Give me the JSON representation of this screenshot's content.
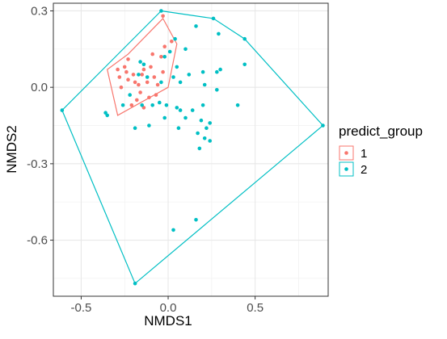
{
  "chart_data": {
    "type": "scatter",
    "title": "",
    "xlabel": "NMDS1",
    "ylabel": "NMDS2",
    "xlim": [
      -0.66,
      0.92
    ],
    "ylim": [
      -0.82,
      0.33
    ],
    "x_ticks": [
      -0.5,
      0.0,
      0.5
    ],
    "x_tick_labels": [
      "-0.5",
      "0.0",
      "0.5"
    ],
    "y_ticks": [
      0.3,
      0.0,
      -0.3,
      -0.6
    ],
    "y_tick_labels": [
      "0.3",
      "0.0",
      "-0.3",
      "-0.6"
    ],
    "grid": true,
    "legend": {
      "title": "predict_group",
      "position": "right",
      "entries": [
        "1",
        "2"
      ]
    },
    "series": [
      {
        "name": "1",
        "color": "#F8766D",
        "points": [
          [
            -0.29,
            0.07
          ],
          [
            -0.25,
            0.08
          ],
          [
            -0.24,
            0.06
          ],
          [
            -0.28,
            0.04
          ],
          [
            -0.23,
            0.03
          ],
          [
            -0.2,
            0.05
          ],
          [
            -0.19,
            0.02
          ],
          [
            -0.17,
            0.01
          ],
          [
            -0.15,
            0.05
          ],
          [
            -0.14,
            0.07
          ],
          [
            -0.12,
            0.02
          ],
          [
            -0.16,
            -0.02
          ],
          [
            -0.18,
            -0.05
          ],
          [
            -0.14,
            -0.08
          ],
          [
            -0.11,
            -0.04
          ],
          [
            -0.1,
            0.08
          ],
          [
            -0.08,
            0.04
          ],
          [
            -0.06,
            0.01
          ],
          [
            -0.07,
            -0.03
          ],
          [
            -0.04,
            0.12
          ],
          [
            -0.02,
            0.16
          ],
          [
            0.02,
            0.18
          ],
          [
            -0.03,
            0.06
          ],
          [
            -0.27,
            0.0
          ],
          [
            -0.21,
            -0.07
          ],
          [
            -0.09,
            0.13
          ],
          [
            -0.03,
            0.28
          ],
          [
            -0.23,
            0.11
          ]
        ],
        "hull": [
          [
            -0.03,
            0.27
          ],
          [
            0.05,
            0.17
          ],
          [
            0.0,
            0.0
          ],
          [
            -0.29,
            -0.11
          ],
          [
            -0.35,
            0.07
          ],
          [
            -0.23,
            0.13
          ]
        ]
      },
      {
        "name": "2",
        "color": "#00BFC4",
        "points": [
          [
            -0.04,
            0.3
          ],
          [
            0.26,
            0.27
          ],
          [
            0.16,
            0.24
          ],
          [
            0.29,
            0.21
          ],
          [
            0.44,
            0.19
          ],
          [
            0.04,
            0.19
          ],
          [
            0.1,
            0.15
          ],
          [
            -0.02,
            0.12
          ],
          [
            0.01,
            0.14
          ],
          [
            0.05,
            0.08
          ],
          [
            0.12,
            0.05
          ],
          [
            0.2,
            0.06
          ],
          [
            0.3,
            0.07
          ],
          [
            0.28,
            0.06
          ],
          [
            0.44,
            0.09
          ],
          [
            0.21,
            0.01
          ],
          [
            0.28,
            -0.01
          ],
          [
            -0.16,
            0.1
          ],
          [
            -0.14,
            0.09
          ],
          [
            -0.17,
            0.05
          ],
          [
            -0.12,
            0.04
          ],
          [
            0.03,
            0.04
          ],
          [
            0.07,
            0.02
          ],
          [
            -0.04,
            0.02
          ],
          [
            -0.22,
            -0.03
          ],
          [
            -0.26,
            -0.07
          ],
          [
            -0.15,
            -0.07
          ],
          [
            -0.09,
            -0.07
          ],
          [
            -0.05,
            -0.06
          ],
          [
            -0.01,
            -0.07
          ],
          [
            0.05,
            -0.08
          ],
          [
            0.14,
            -0.09
          ],
          [
            0.07,
            -0.09
          ],
          [
            0.2,
            -0.07
          ],
          [
            0.4,
            -0.07
          ],
          [
            -0.02,
            -0.12
          ],
          [
            0.1,
            -0.12
          ],
          [
            0.19,
            -0.13
          ],
          [
            0.24,
            -0.14
          ],
          [
            0.22,
            -0.16
          ],
          [
            0.06,
            -0.16
          ],
          [
            0.17,
            -0.18
          ],
          [
            0.21,
            -0.2
          ],
          [
            0.24,
            -0.21
          ],
          [
            0.18,
            -0.24
          ],
          [
            -0.19,
            -0.16
          ],
          [
            -0.11,
            -0.15
          ],
          [
            -0.36,
            -0.1
          ],
          [
            -0.35,
            -0.11
          ],
          [
            0.16,
            -0.52
          ],
          [
            0.03,
            -0.56
          ],
          [
            -0.61,
            -0.09
          ],
          [
            0.89,
            -0.15
          ],
          [
            -0.19,
            -0.77
          ]
        ],
        "hull": [
          [
            -0.04,
            0.3
          ],
          [
            0.26,
            0.27
          ],
          [
            0.44,
            0.19
          ],
          [
            0.89,
            -0.15
          ],
          [
            -0.19,
            -0.77
          ],
          [
            -0.61,
            -0.09
          ]
        ]
      }
    ]
  }
}
